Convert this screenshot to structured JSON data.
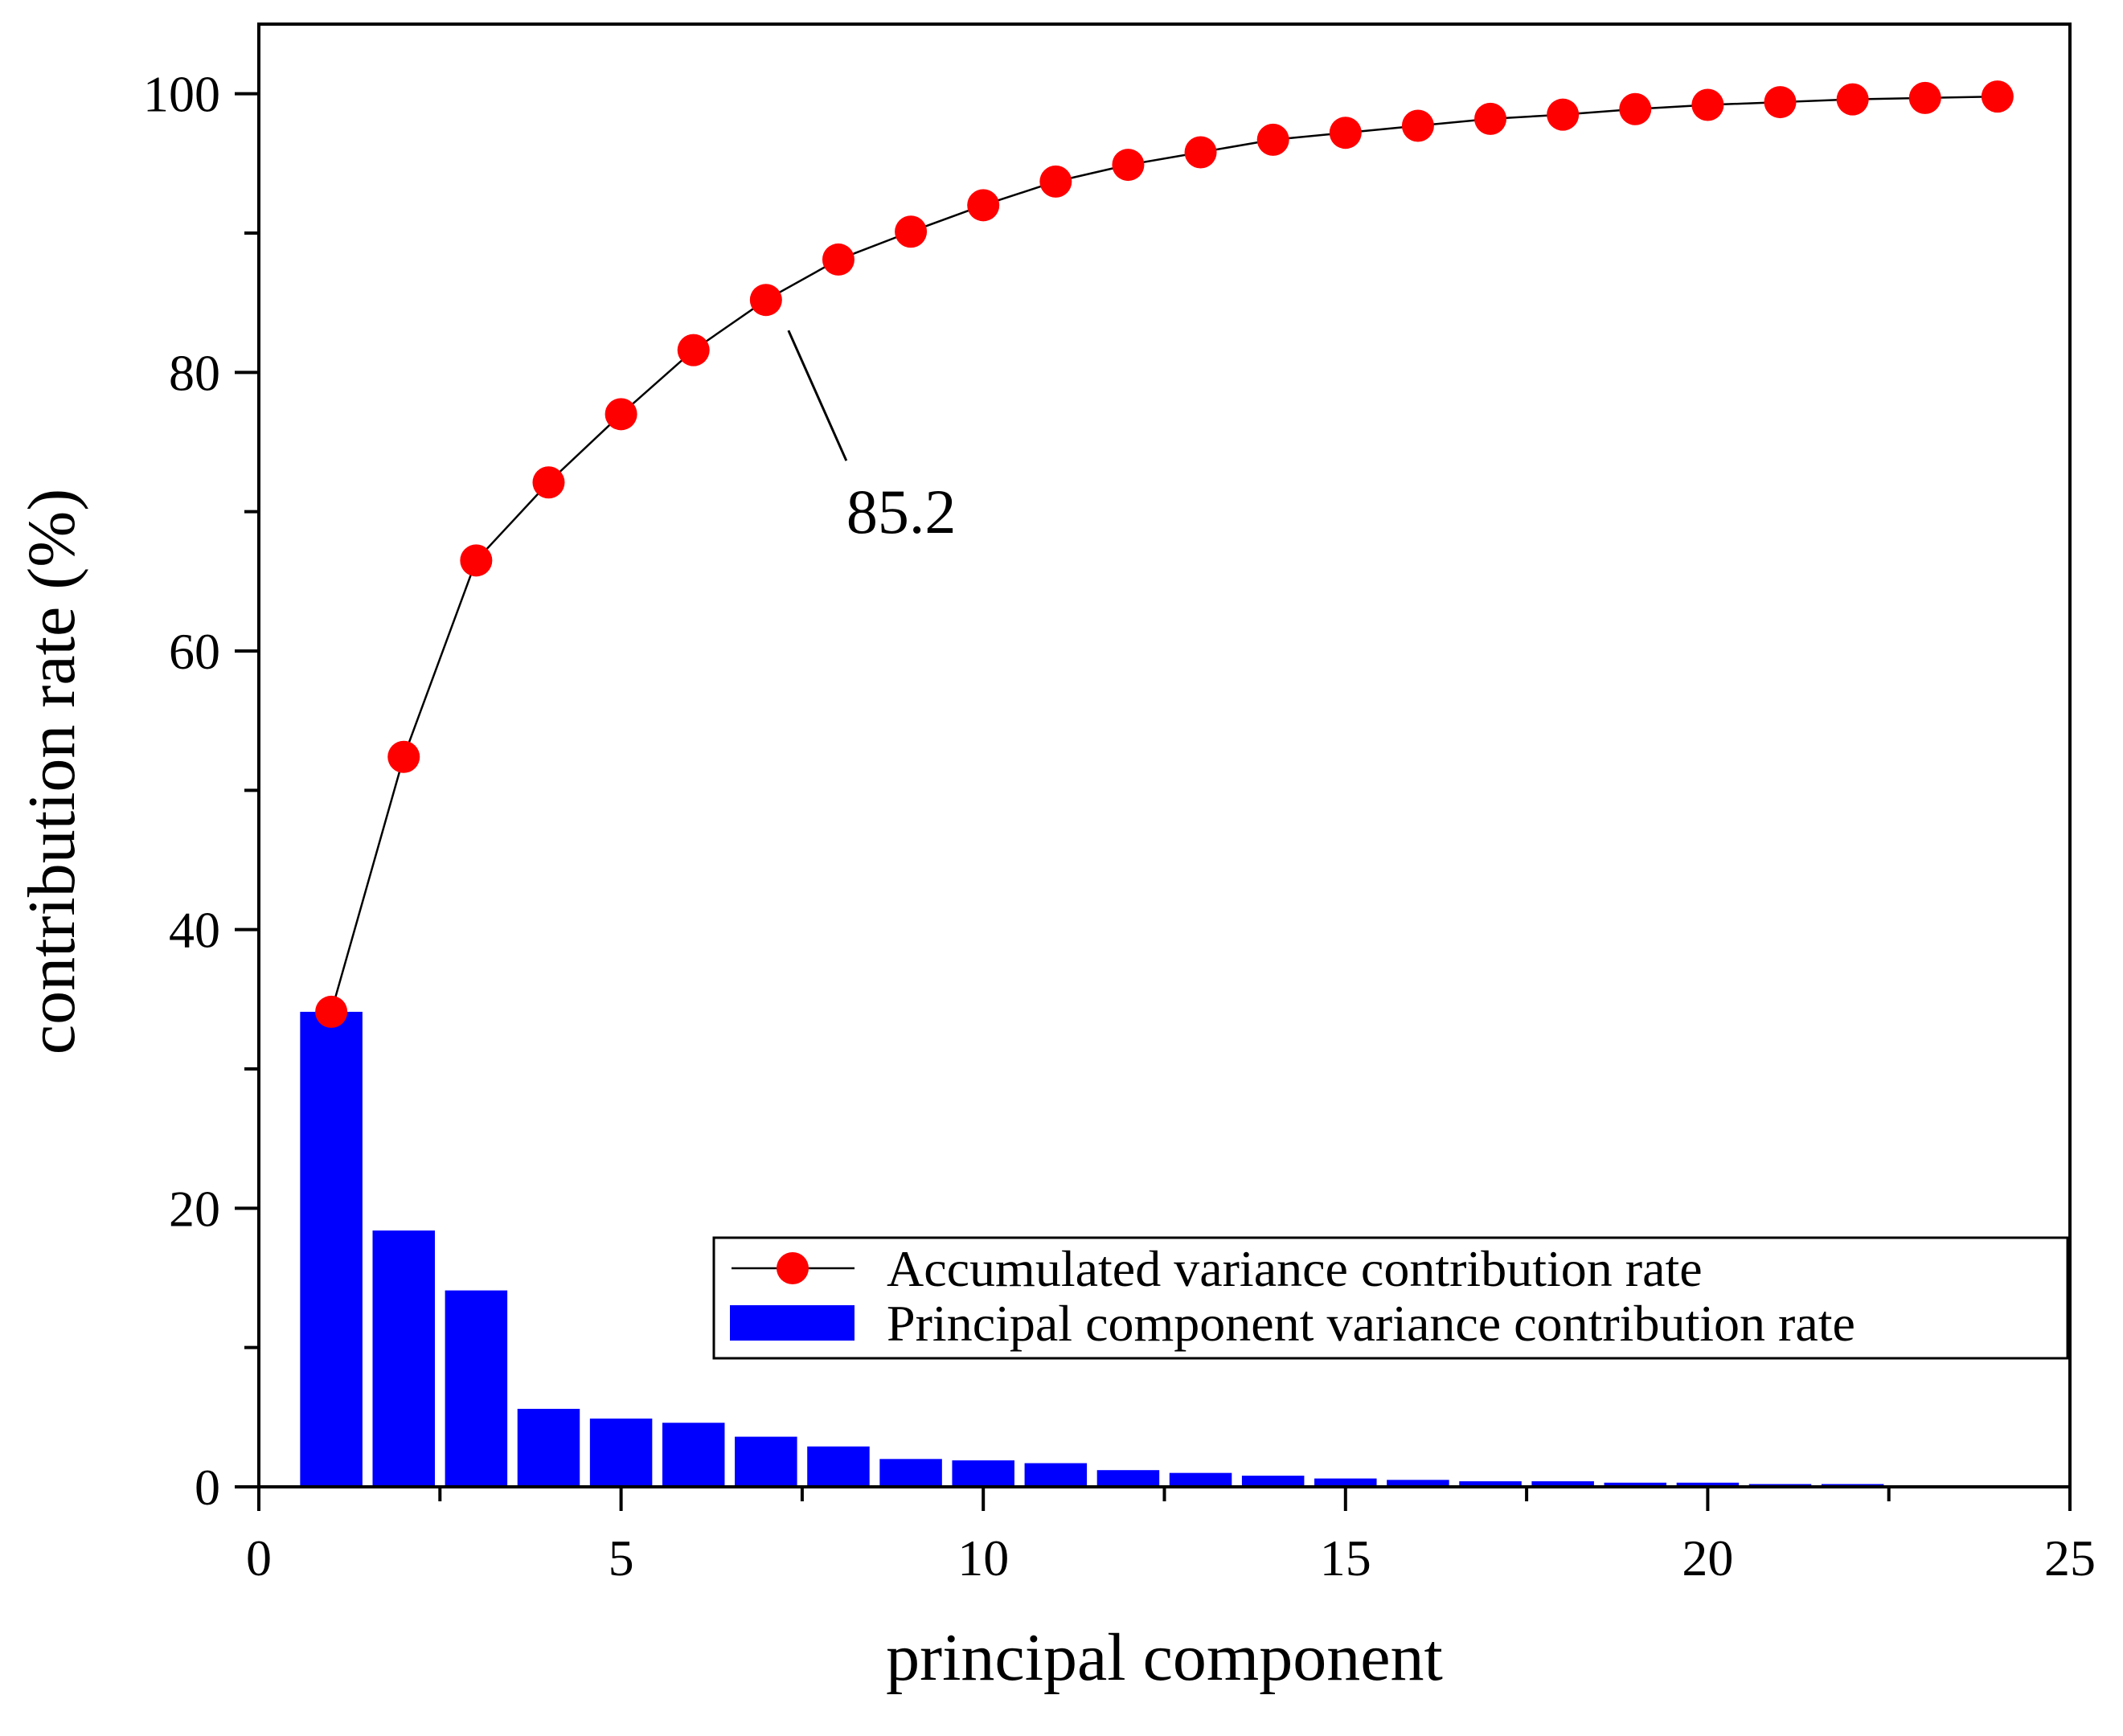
{
  "chart_data": {
    "type": "bar+line",
    "xlabel": "principal component",
    "ylabel": "contribution rate (%)",
    "xlim": [
      0,
      25
    ],
    "ylim": [
      0,
      105
    ],
    "xticks": [
      0,
      5,
      10,
      15,
      20,
      25
    ],
    "yticks": [
      0,
      20,
      40,
      60,
      80,
      100
    ],
    "grid": false,
    "legend_position": "bottom-right",
    "series": [
      {
        "name": "Accumulated variance contribution rate",
        "type": "line",
        "color": "#ff0000",
        "x": [
          1,
          2,
          3,
          4,
          5,
          6,
          7,
          8,
          9,
          10,
          11,
          12,
          13,
          14,
          15,
          16,
          17,
          18,
          19,
          20,
          21,
          22,
          23,
          24
        ],
        "values": [
          34.1,
          52.4,
          66.5,
          72.1,
          77.0,
          81.6,
          85.2,
          88.1,
          90.1,
          92.0,
          93.7,
          94.9,
          95.8,
          96.7,
          97.2,
          97.7,
          98.2,
          98.5,
          98.9,
          99.2,
          99.4,
          99.6,
          99.7,
          99.8
        ]
      },
      {
        "name": "Principal component variance contribution rate",
        "type": "bar",
        "color": "#0000ff",
        "x": [
          1,
          2,
          3,
          4,
          5,
          6,
          7,
          8,
          9,
          10,
          11,
          12,
          13,
          14,
          15,
          16,
          17,
          18,
          19,
          20,
          21,
          22,
          23,
          24
        ],
        "values": [
          34.1,
          18.4,
          14.1,
          5.6,
          4.9,
          4.6,
          3.6,
          2.9,
          2.0,
          1.9,
          1.7,
          1.2,
          1.0,
          0.8,
          0.6,
          0.5,
          0.4,
          0.4,
          0.3,
          0.3,
          0.2,
          0.2,
          0.1,
          0.1
        ]
      }
    ],
    "annotations": [
      {
        "text": "85.2",
        "x": 7,
        "y": 85.2
      }
    ]
  }
}
